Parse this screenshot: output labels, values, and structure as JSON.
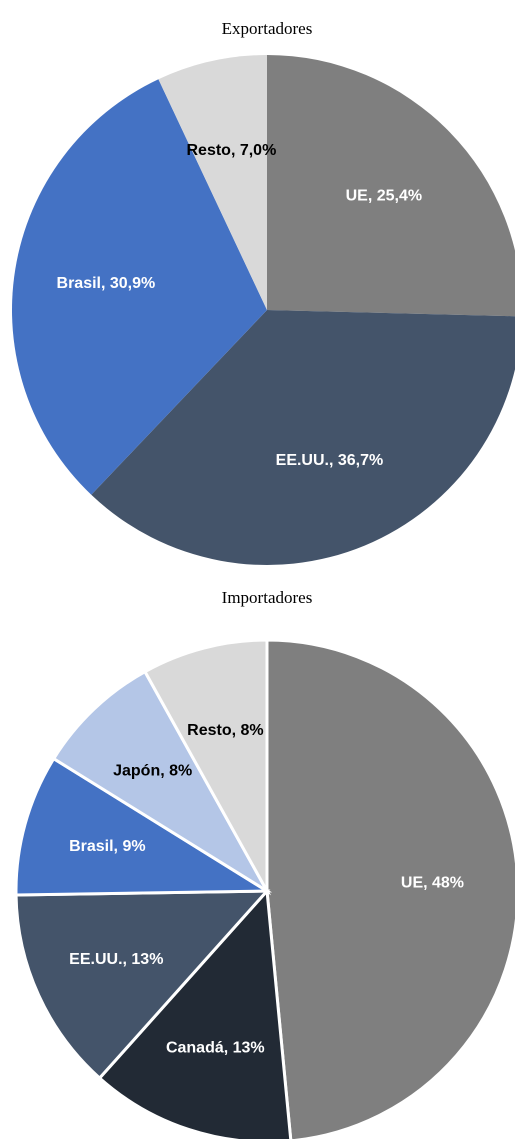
{
  "chart_data": [
    {
      "type": "pie",
      "title": "Exportadores",
      "categories": [
        "UE",
        "EE.UU.",
        "Brasil",
        "Resto"
      ],
      "values": [
        25.4,
        36.7,
        30.9,
        7.0
      ],
      "value_labels": [
        "UE, 25,4%",
        "EE.UU., 36,7%",
        "Brasil, 30,9%",
        "Resto, 7,0%"
      ],
      "colors": [
        "#7f7f7f",
        "#44546a",
        "#4472c4",
        "#d9d9d9"
      ]
    },
    {
      "type": "pie",
      "title": "Importadores",
      "categories": [
        "UE",
        "Canadá",
        "EE.UU.",
        "Brasil",
        "Japón",
        "Resto"
      ],
      "values": [
        48,
        13,
        13,
        9,
        8,
        8
      ],
      "value_labels": [
        "UE, 48%",
        "Canadá, 13%",
        "EE.UU., 13%",
        "Brasil, 9%",
        "Japón, 8%",
        "Resto, 8%"
      ],
      "colors": [
        "#7f7f7f",
        "#222a35",
        "#44546a",
        "#4472c4",
        "#b4c6e7",
        "#d9d9d9"
      ]
    }
  ]
}
